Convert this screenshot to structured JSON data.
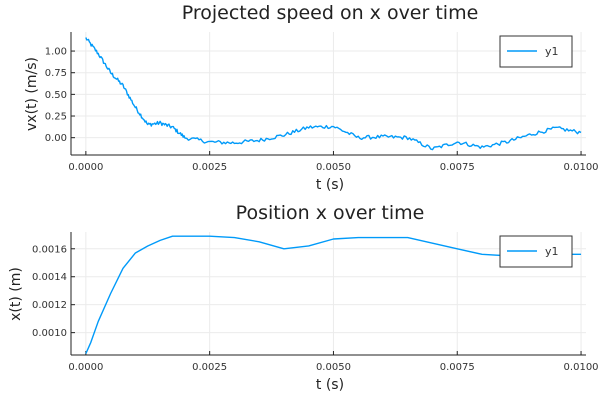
{
  "chart_data": [
    {
      "type": "line",
      "title": "Projected speed on x over time",
      "xlabel": "t (s)",
      "ylabel": "vx(t) (m/s)",
      "xlim": [
        -0.0003,
        0.0101
      ],
      "ylim": [
        -0.2,
        1.22
      ],
      "xticks": [
        0,
        0.0025,
        0.005,
        0.0075,
        0.01
      ],
      "xtick_labels": [
        "0.0000",
        "0.0025",
        "0.0050",
        "0.0075",
        "0.0100"
      ],
      "yticks": [
        0,
        0.25,
        0.5,
        0.75,
        1.0
      ],
      "ytick_labels": [
        "0.00",
        "0.25",
        "0.50",
        "0.75",
        "1.00"
      ],
      "grid": true,
      "legend_position": "top-right",
      "series": [
        {
          "name": "y1",
          "color": "#009af9",
          "x": [
            0,
            0.00025,
            0.0005,
            0.00075,
            0.001,
            0.00125,
            0.0015,
            0.00175,
            0.002,
            0.0025,
            0.003,
            0.0035,
            0.004,
            0.0045,
            0.005,
            0.0055,
            0.006,
            0.0065,
            0.007,
            0.0075,
            0.008,
            0.0085,
            0.009,
            0.0095,
            0.01
          ],
          "y": [
            1.15,
            0.97,
            0.75,
            0.6,
            0.35,
            0.15,
            0.17,
            0.12,
            0.0,
            -0.05,
            -0.06,
            -0.03,
            0.03,
            0.12,
            0.13,
            0.0,
            0.01,
            0.0,
            -0.13,
            -0.05,
            -0.11,
            -0.05,
            0.04,
            0.11,
            0.06
          ]
        }
      ]
    },
    {
      "type": "line",
      "title": "Position x over time",
      "xlabel": "t (s)",
      "ylabel": "x(t) (m)",
      "xlim": [
        -0.0003,
        0.0101
      ],
      "ylim": [
        0.00084,
        0.00172
      ],
      "xticks": [
        0,
        0.0025,
        0.005,
        0.0075,
        0.01
      ],
      "xtick_labels": [
        "0.0000",
        "0.0025",
        "0.0050",
        "0.0075",
        "0.0100"
      ],
      "yticks": [
        0.001,
        0.0012,
        0.0014,
        0.0016
      ],
      "ytick_labels": [
        "0.0010",
        "0.0012",
        "0.0014",
        "0.0016"
      ],
      "grid": true,
      "legend_position": "top-right",
      "series": [
        {
          "name": "y1",
          "color": "#009af9",
          "x": [
            0,
            0.0001,
            0.00025,
            0.0005,
            0.00075,
            0.001,
            0.00125,
            0.0015,
            0.00175,
            0.002,
            0.0025,
            0.003,
            0.0035,
            0.004,
            0.0045,
            0.005,
            0.0055,
            0.006,
            0.0065,
            0.007,
            0.0075,
            0.008,
            0.0085,
            0.009,
            0.0095,
            0.01
          ],
          "y": [
            0.00085,
            0.00093,
            0.00108,
            0.00128,
            0.00146,
            0.00157,
            0.00162,
            0.00166,
            0.00169,
            0.00169,
            0.00169,
            0.00168,
            0.00165,
            0.0016,
            0.00162,
            0.00167,
            0.00168,
            0.00168,
            0.00168,
            0.00164,
            0.0016,
            0.00156,
            0.00155,
            0.00155,
            0.00156,
            0.00156
          ]
        }
      ]
    }
  ]
}
